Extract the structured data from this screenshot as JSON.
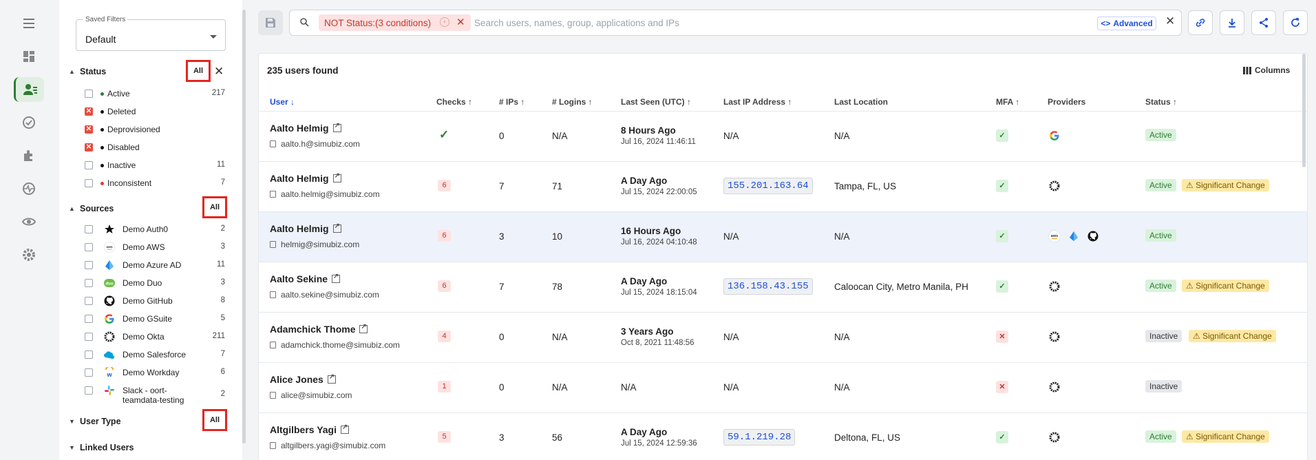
{
  "nav": {
    "items": [
      {
        "name": "menu",
        "active": false
      },
      {
        "name": "dashboard",
        "active": false
      },
      {
        "name": "users",
        "active": true
      },
      {
        "name": "checks",
        "active": false
      },
      {
        "name": "integrations",
        "active": false
      },
      {
        "name": "activity",
        "active": false
      },
      {
        "name": "visibility",
        "active": false
      },
      {
        "name": "settings",
        "active": false
      }
    ]
  },
  "filters": {
    "saved_label": "Saved Filters",
    "saved_value": "Default",
    "status": {
      "title": "Status",
      "all_label": "All",
      "items": [
        {
          "label": "Active",
          "count": "217",
          "checked": false,
          "dot": "#2e7d32"
        },
        {
          "label": "Deleted",
          "count": "",
          "checked": true,
          "dot": "#111111"
        },
        {
          "label": "Deprovisioned",
          "count": "",
          "checked": true,
          "dot": "#111111"
        },
        {
          "label": "Disabled",
          "count": "",
          "checked": true,
          "dot": "#111111"
        },
        {
          "label": "Inactive",
          "count": "11",
          "checked": false,
          "dot": "#111111"
        },
        {
          "label": "Inconsistent",
          "count": "7",
          "checked": false,
          "dot": "#e53935"
        }
      ]
    },
    "sources": {
      "title": "Sources",
      "all_label": "All",
      "items": [
        {
          "label": "Demo Auth0",
          "count": "2",
          "icon": "auth0-icon"
        },
        {
          "label": "Demo AWS",
          "count": "3",
          "icon": "aws-icon"
        },
        {
          "label": "Demo Azure AD",
          "count": "11",
          "icon": "azure-icon"
        },
        {
          "label": "Demo Duo",
          "count": "3",
          "icon": "duo-icon"
        },
        {
          "label": "Demo GitHub",
          "count": "8",
          "icon": "github-icon"
        },
        {
          "label": "Demo GSuite",
          "count": "5",
          "icon": "google-icon"
        },
        {
          "label": "Demo Okta",
          "count": "211",
          "icon": "okta-icon"
        },
        {
          "label": "Demo Salesforce",
          "count": "7",
          "icon": "salesforce-icon"
        },
        {
          "label": "Demo Workday",
          "count": "6",
          "icon": "workday-icon"
        },
        {
          "label": "Slack - oort-",
          "label2": "teamdata-testing",
          "count": "2",
          "icon": "slack-icon"
        }
      ]
    },
    "user_type": {
      "title": "User Type",
      "all_label": "All"
    },
    "linked_users": {
      "title": "Linked Users"
    }
  },
  "search": {
    "chip_label": "NOT Status:(3 conditions)",
    "placeholder": "Search users, names, group, applications and IPs",
    "advanced_label": "Advanced"
  },
  "table": {
    "found_label": "235 users found",
    "columns_label": "Columns",
    "headers": {
      "user": "User",
      "checks": "Checks",
      "ips": "# IPs",
      "logins": "# Logins",
      "last_seen": "Last Seen (UTC)",
      "last_ip": "Last IP Address",
      "last_location": "Last Location",
      "mfa": "MFA",
      "providers": "Providers",
      "status": "Status"
    },
    "rows": [
      {
        "name": "Aalto Helmig",
        "email": "aalto.h@simubiz.com",
        "checks": "",
        "checks_ok": true,
        "ips": "0",
        "logins": "N/A",
        "seen_rel": "8 Hours Ago",
        "seen_abs": "Jul 16, 2024 11:46:11",
        "ip": "N/A",
        "location": "N/A",
        "mfa": true,
        "providers": [
          "google-icon"
        ],
        "status": "Active",
        "significant": ""
      },
      {
        "name": "Aalto Helmig",
        "email": "aalto.helmig@simubiz.com",
        "checks": "6",
        "checks_ok": false,
        "ips": "7",
        "logins": "71",
        "seen_rel": "A Day Ago",
        "seen_abs": "Jul 15, 2024 22:00:05",
        "ip": "155.201.163.64",
        "location": "Tampa, FL, US",
        "mfa": true,
        "providers": [
          "okta-icon"
        ],
        "status": "Active",
        "significant": "⚠ Significant Change"
      },
      {
        "name": "Aalto Helmig",
        "email": "helmig@simubiz.com",
        "checks": "6",
        "checks_ok": false,
        "ips": "3",
        "logins": "10",
        "seen_rel": "16 Hours Ago",
        "seen_abs": "Jul 16, 2024 04:10:48",
        "ip": "N/A",
        "location": "N/A",
        "mfa": true,
        "providers": [
          "aws-icon",
          "azure-icon",
          "github-icon"
        ],
        "status": "Active",
        "significant": ""
      },
      {
        "name": "Aalto Sekine",
        "email": "aalto.sekine@simubiz.com",
        "checks": "6",
        "checks_ok": false,
        "ips": "7",
        "logins": "78",
        "seen_rel": "A Day Ago",
        "seen_abs": "Jul 15, 2024 18:15:04",
        "ip": "136.158.43.155",
        "location": "Caloocan City, Metro Manila, PH",
        "mfa": true,
        "providers": [
          "okta-icon"
        ],
        "status": "Active",
        "significant": "⚠ Significant Change"
      },
      {
        "name": "Adamchick Thome",
        "email": "adamchick.thome@simubiz.com",
        "checks": "4",
        "checks_ok": false,
        "ips": "0",
        "logins": "N/A",
        "seen_rel": "3 Years Ago",
        "seen_abs": "Oct 8, 2021 11:48:56",
        "ip": "N/A",
        "location": "N/A",
        "mfa": false,
        "providers": [
          "okta-icon"
        ],
        "status": "Inactive",
        "significant": "⚠ Significant Change"
      },
      {
        "name": "Alice Jones",
        "email": "alice@simubiz.com",
        "checks": "1",
        "checks_ok": false,
        "ips": "0",
        "logins": "N/A",
        "seen_rel": "N/A",
        "seen_abs": "",
        "ip": "N/A",
        "location": "N/A",
        "mfa": false,
        "providers": [
          "okta-icon"
        ],
        "status": "Inactive",
        "significant": ""
      },
      {
        "name": "Altgilbers Yagi",
        "email": "altgilbers.yagi@simubiz.com",
        "checks": "5",
        "checks_ok": false,
        "ips": "3",
        "logins": "56",
        "seen_rel": "A Day Ago",
        "seen_abs": "Jul 15, 2024 12:59:36",
        "ip": "59.1.219.28",
        "location": "Deltona, FL, US",
        "mfa": true,
        "providers": [
          "okta-icon"
        ],
        "status": "Active",
        "significant": "⚠ Significant Change"
      }
    ]
  }
}
